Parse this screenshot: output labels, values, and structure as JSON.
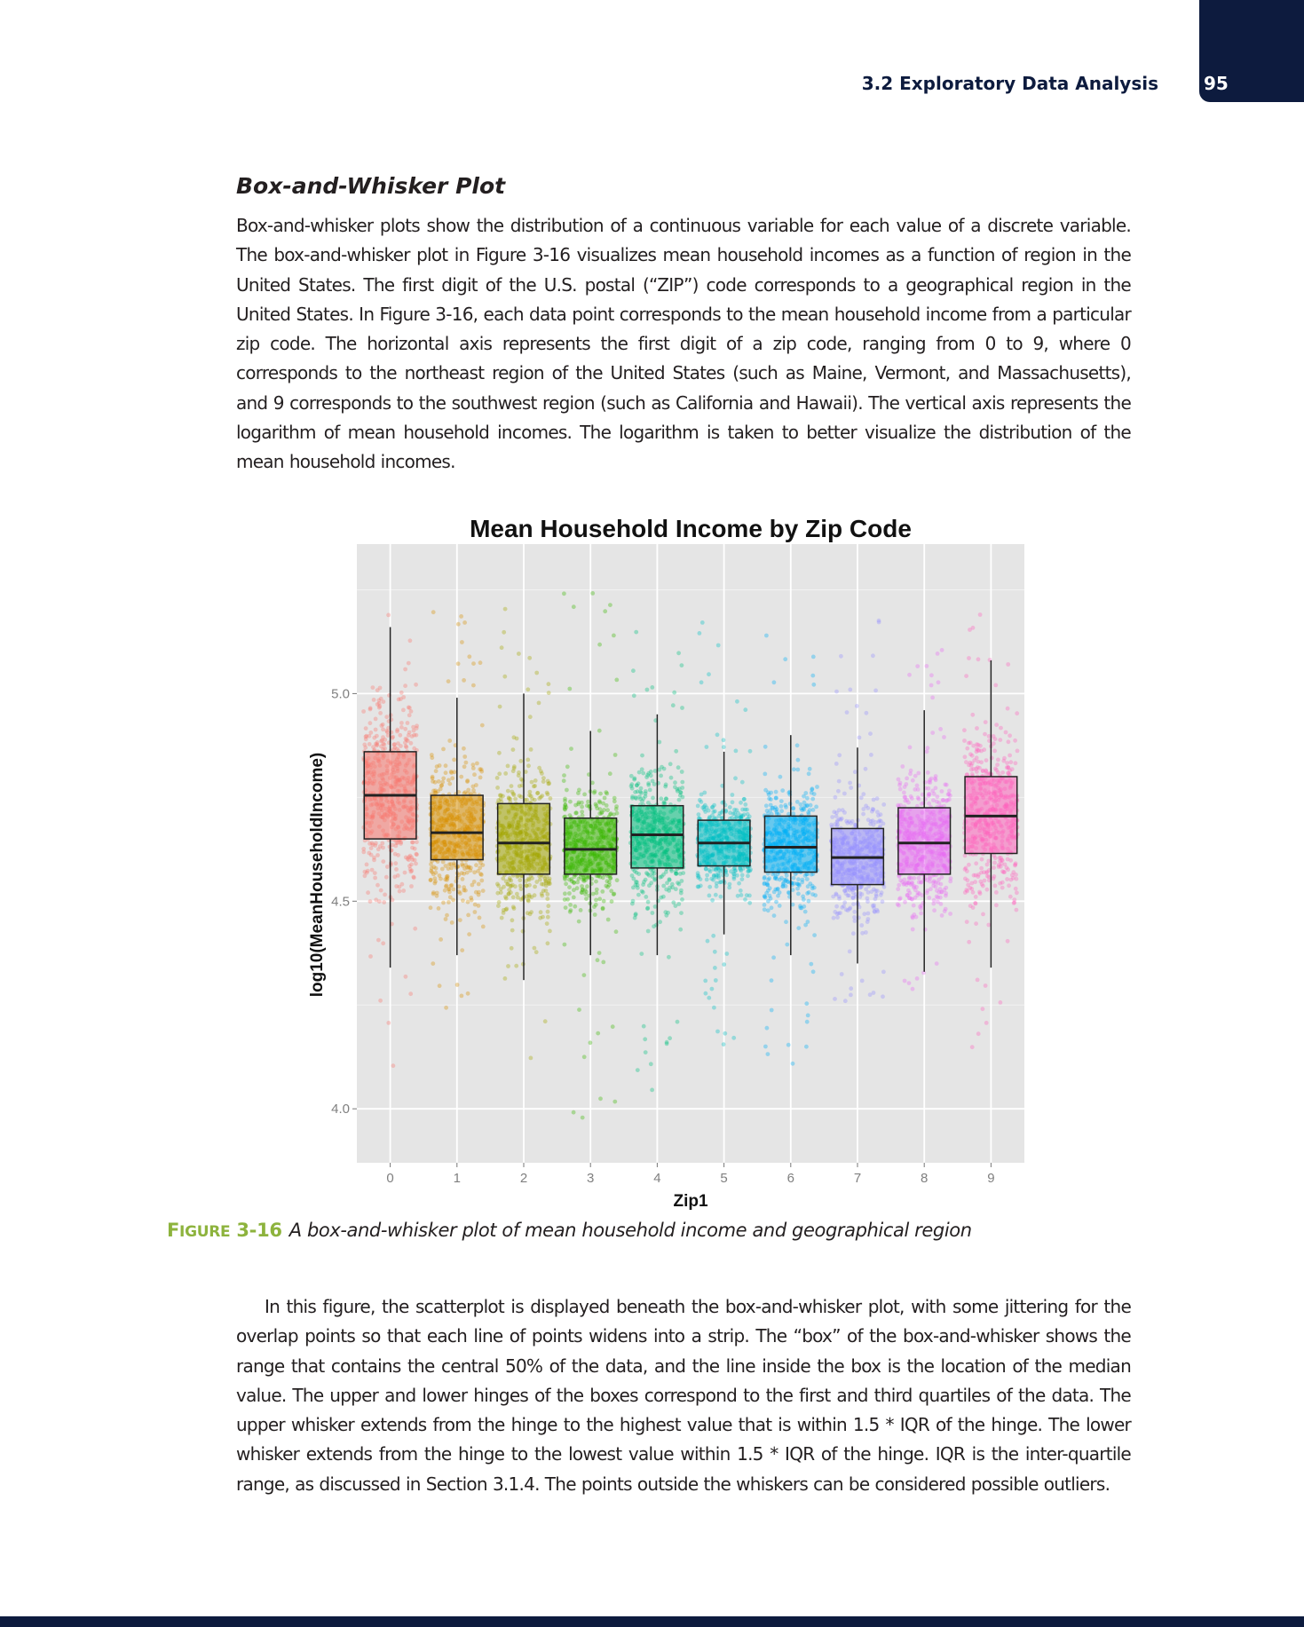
{
  "header": {
    "running_head": "3.2 Exploratory Data Analysis",
    "page_number": "95"
  },
  "section": {
    "heading": "Box-and-Whisker Plot",
    "paragraph1": "Box-and-whisker plots show the distribution of a continuous variable for each value of a discrete variable. The box-and-whisker plot in Figure 3-16 visualizes mean household incomes as a function of region in the United States. The first digit of the U.S. postal (“ZIP”) code corresponds to a geographical region in the United States. In Figure 3-16, each data point corresponds to the mean household income from a particular zip code. The horizontal axis represents the first digit of a zip code, ranging from 0 to 9, where 0 corresponds to the northeast region of the United States (such as Maine, Vermont, and Massachusetts), and 9 corresponds to the southwest region (such as California and Hawaii). The vertical axis represents the logarithm of mean household incomes. The logarithm is taken to better visualize the distribution of the mean household incomes.",
    "paragraph2": "In this figure, the scatterplot is displayed beneath the box-and-whisker plot, with some jittering for the overlap points so that each line of points widens into a strip. The “box” of the box-and-whisker shows the range that contains the central 50% of the data, and the line inside the box is the location of the median value. The upper and lower hinges of the boxes correspond to the first and third quartiles of the data. The upper whisker extends from the hinge to the highest value that is within 1.5 * IQR of the hinge. The lower whisker extends from the hinge to the lowest value within 1.5 * IQR of the hinge. IQR is the inter-quartile range, as discussed in Section 3.1.4. The points outside the whiskers can be considered possible outliers."
  },
  "figure": {
    "label_prefix_big": "F",
    "label_prefix_small": "IGURE",
    "label_number": "3-16",
    "caption": "A box-and-whisker plot of mean household income and geographical region"
  },
  "chart_data": {
    "type": "boxplot",
    "title": "Mean Household Income by Zip Code",
    "xlabel": "Zip1",
    "ylabel": "log10(MeanHouseholdIncome)",
    "categories": [
      "0",
      "1",
      "2",
      "3",
      "4",
      "5",
      "6",
      "7",
      "8",
      "9"
    ],
    "ylim": [
      3.87,
      5.36
    ],
    "yticks": [
      4.0,
      4.5,
      5.0
    ],
    "ytick_labels": [
      "4.0",
      "4.5",
      "5.0"
    ],
    "grid": true,
    "background": "#e5e5e5",
    "series": [
      {
        "name": "0",
        "color": "#f8766d",
        "whisker_low": 4.34,
        "q1": 4.65,
        "median": 4.755,
        "q3": 4.86,
        "whisker_high": 5.16,
        "point_min": 4.08,
        "point_max": 5.22
      },
      {
        "name": "1",
        "color": "#d89000",
        "whisker_low": 4.37,
        "q1": 4.6,
        "median": 4.665,
        "q3": 4.755,
        "whisker_high": 4.99,
        "point_min": 4.22,
        "point_max": 5.2
      },
      {
        "name": "2",
        "color": "#a3a500",
        "whisker_low": 4.31,
        "q1": 4.565,
        "median": 4.64,
        "q3": 4.735,
        "whisker_high": 5.0,
        "point_min": 4.08,
        "point_max": 5.22
      },
      {
        "name": "3",
        "color": "#39b600",
        "whisker_low": 4.37,
        "q1": 4.565,
        "median": 4.625,
        "q3": 4.7,
        "whisker_high": 4.91,
        "point_min": 3.97,
        "point_max": 5.25
      },
      {
        "name": "4",
        "color": "#00bf7d",
        "whisker_low": 4.37,
        "q1": 4.58,
        "median": 4.66,
        "q3": 4.73,
        "whisker_high": 4.95,
        "point_min": 4.02,
        "point_max": 5.15
      },
      {
        "name": "5",
        "color": "#00bfc4",
        "whisker_low": 4.42,
        "q1": 4.585,
        "median": 4.64,
        "q3": 4.695,
        "whisker_high": 4.86,
        "point_min": 4.12,
        "point_max": 5.2
      },
      {
        "name": "6",
        "color": "#00b0f6",
        "whisker_low": 4.37,
        "q1": 4.57,
        "median": 4.63,
        "q3": 4.705,
        "whisker_high": 4.9,
        "point_min": 4.1,
        "point_max": 5.24
      },
      {
        "name": "7",
        "color": "#9590ff",
        "whisker_low": 4.35,
        "q1": 4.54,
        "median": 4.605,
        "q3": 4.675,
        "whisker_high": 4.87,
        "point_min": 4.25,
        "point_max": 5.2
      },
      {
        "name": "8",
        "color": "#e76bf3",
        "whisker_low": 4.33,
        "q1": 4.565,
        "median": 4.64,
        "q3": 4.725,
        "whisker_high": 4.96,
        "point_min": 4.28,
        "point_max": 5.15
      },
      {
        "name": "9",
        "color": "#ff62bc",
        "whisker_low": 4.34,
        "q1": 4.615,
        "median": 4.705,
        "q3": 4.8,
        "whisker_high": 5.08,
        "point_min": 4.08,
        "point_max": 5.2
      }
    ]
  }
}
